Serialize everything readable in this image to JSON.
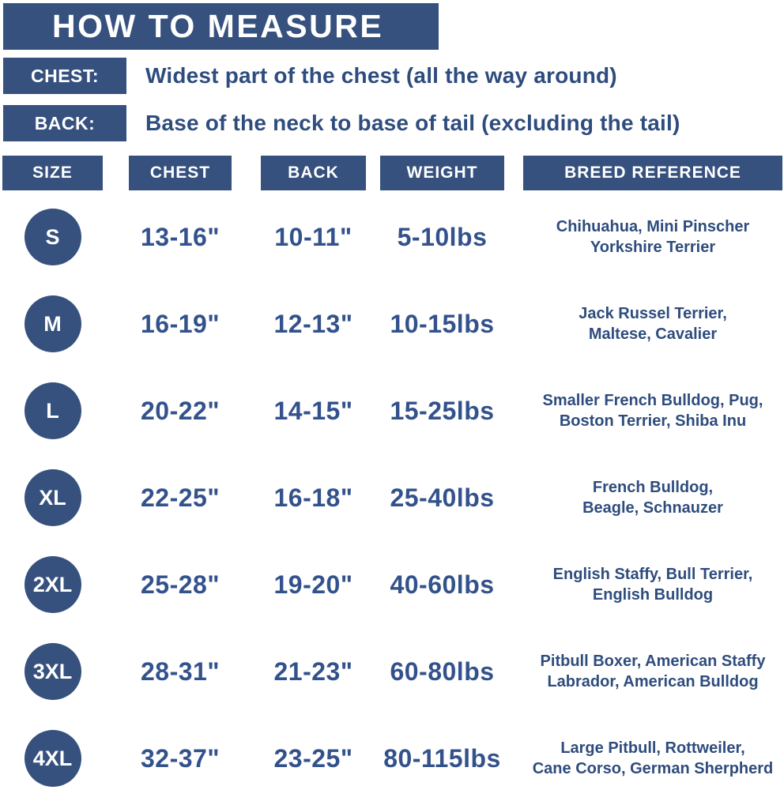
{
  "colors": {
    "navy": "#36517E",
    "text-blue": "#2E4C7D",
    "value-blue": "#33528C"
  },
  "banner": {
    "title": "HOW TO MEASURE"
  },
  "measure_guide": [
    {
      "label": "CHEST:",
      "description": "Widest part of the chest (all the way around)"
    },
    {
      "label": "BACK:",
      "description": "Base of the neck to base of tail (excluding the tail)"
    }
  ],
  "table": {
    "headers": [
      "SIZE",
      "CHEST",
      "BACK",
      "WEIGHT",
      "BREED REFERENCE"
    ],
    "rows": [
      {
        "size": "S",
        "chest": "13-16\"",
        "back": "10-11\"",
        "weight": "5-10lbs",
        "breed_line1": "Chihuahua, Mini Pinscher",
        "breed_line2": "Yorkshire Terrier"
      },
      {
        "size": "M",
        "chest": "16-19\"",
        "back": "12-13\"",
        "weight": "10-15lbs",
        "breed_line1": "Jack Russel Terrier,",
        "breed_line2": "Maltese, Cavalier"
      },
      {
        "size": "L",
        "chest": "20-22\"",
        "back": "14-15\"",
        "weight": "15-25lbs",
        "breed_line1": "Smaller French Bulldog, Pug,",
        "breed_line2": "Boston Terrier, Shiba Inu"
      },
      {
        "size": "XL",
        "chest": "22-25\"",
        "back": "16-18\"",
        "weight": "25-40lbs",
        "breed_line1": "French Bulldog,",
        "breed_line2": "Beagle, Schnauzer"
      },
      {
        "size": "2XL",
        "chest": "25-28\"",
        "back": "19-20\"",
        "weight": "40-60lbs",
        "breed_line1": "English Staffy, Bull Terrier,",
        "breed_line2": "English Bulldog"
      },
      {
        "size": "3XL",
        "chest": "28-31\"",
        "back": "21-23\"",
        "weight": "60-80lbs",
        "breed_line1": "Pitbull Boxer, American Staffy",
        "breed_line2": "Labrador, American Bulldog"
      },
      {
        "size": "4XL",
        "chest": "32-37\"",
        "back": "23-25\"",
        "weight": "80-115lbs",
        "breed_line1": "Large Pitbull, Rottweiler,",
        "breed_line2": "Cane Corso, German Sherpherd"
      }
    ]
  }
}
